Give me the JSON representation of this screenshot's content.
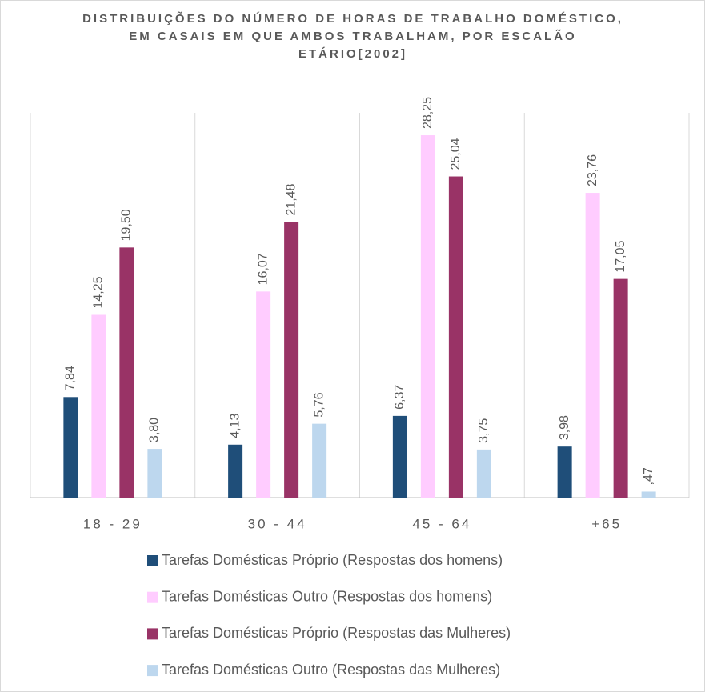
{
  "chart_data": {
    "type": "bar",
    "title": "DISTRIBUIÇÕES DO NÚMERO DE HORAS DE TRABALHO DOMÉSTICO, EM CASAIS EM QUE AMBOS TRABALHAM, POR ESCALÃO ETÁRIO[2002]",
    "categories": [
      "18 - 29",
      "30 - 44",
      "45 - 64",
      "+65"
    ],
    "series": [
      {
        "name": "Tarefas Domésticas Próprio (Respostas dos homens)",
        "color": "#1f4e79",
        "values": [
          7.84,
          4.13,
          6.37,
          3.98
        ],
        "value_labels": [
          "7,84",
          "4,13",
          "6,37",
          "3,98"
        ]
      },
      {
        "name": "Tarefas Domésticas Outro (Respostas dos homens)",
        "color": "#ffccff",
        "values": [
          14.25,
          16.07,
          28.25,
          23.76
        ],
        "value_labels": [
          "14,25",
          "16,07",
          "28,25",
          "23,76"
        ]
      },
      {
        "name": "Tarefas Domésticas Próprio (Respostas das Mulheres)",
        "color": "#993366",
        "values": [
          19.5,
          21.48,
          25.04,
          17.05
        ],
        "value_labels": [
          "19,50",
          "21,48",
          "25,04",
          "17,05"
        ]
      },
      {
        "name": "Tarefas Domésticas Outro (Respostas das Mulheres)",
        "color": "#bdd7ee",
        "values": [
          3.8,
          5.76,
          3.75,
          0.47
        ],
        "value_labels": [
          "3,80",
          "5,76",
          "3,75",
          ",47"
        ]
      }
    ],
    "ylim": [
      0,
      30
    ],
    "legend": "bottom"
  }
}
